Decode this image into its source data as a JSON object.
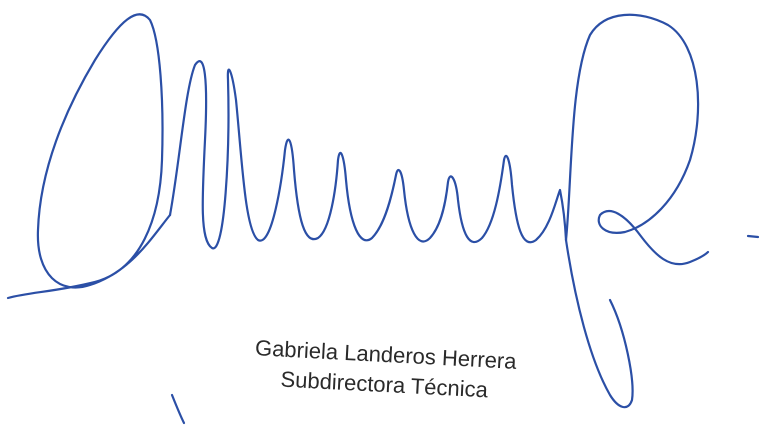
{
  "signature": {
    "name": "Gabriela Landeros Herrera",
    "position": "Subdirectora Técnica"
  }
}
